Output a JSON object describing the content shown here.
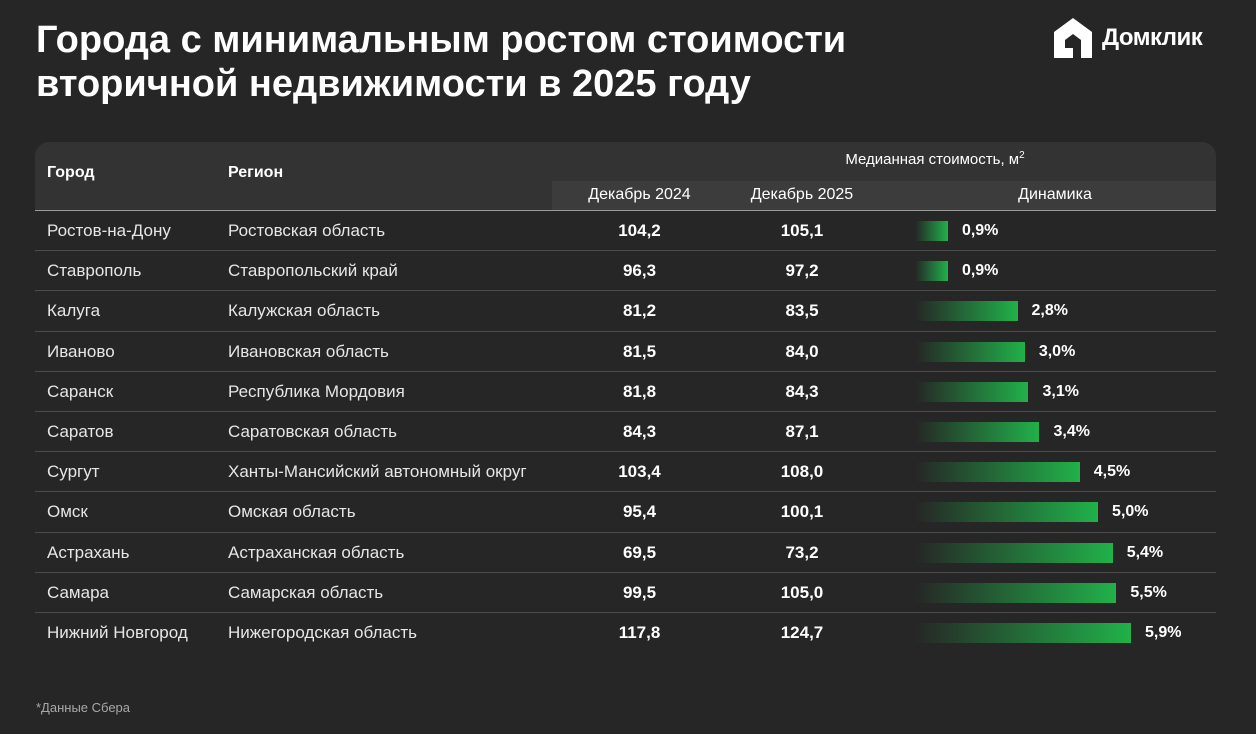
{
  "title": [
    "Города с минимальным ростом стоимости",
    "вторичной недвижимости в 2025 году"
  ],
  "logo": {
    "text": "Домклик"
  },
  "colors": {
    "background": "#262626",
    "header": "#333333",
    "bar": "#21b14a"
  },
  "table": {
    "headers": {
      "city": "Город",
      "region": "Регион",
      "group": "Медианная стоимость, м",
      "group_sup": "2",
      "dec2024": "Декабрь 2024",
      "dec2025": "Декабрь 2025",
      "dynamics": "Динамика"
    }
  },
  "chart_data": {
    "type": "table",
    "columns": [
      "Город",
      "Регион",
      "Декабрь 2024",
      "Декабрь 2025",
      "Динамика"
    ],
    "rows": [
      {
        "city": "Ростов-на-Дону",
        "region": "Ростовская область",
        "dec2024": "104,2",
        "dec2025": "105,1",
        "dynamics": "0,9%",
        "growth": 0.9
      },
      {
        "city": "Ставрополь",
        "region": "Ставропольский край",
        "dec2024": "96,3",
        "dec2025": "97,2",
        "dynamics": "0,9%",
        "growth": 0.9
      },
      {
        "city": "Калуга",
        "region": "Калужская область",
        "dec2024": "81,2",
        "dec2025": "83,5",
        "dynamics": "2,8%",
        "growth": 2.8
      },
      {
        "city": "Иваново",
        "region": "Ивановская область",
        "dec2024": "81,5",
        "dec2025": "84,0",
        "dynamics": "3,0%",
        "growth": 3.0
      },
      {
        "city": "Саранск",
        "region": "Республика Мордовия",
        "dec2024": "81,8",
        "dec2025": "84,3",
        "dynamics": "3,1%",
        "growth": 3.1
      },
      {
        "city": "Саратов",
        "region": "Саратовская область",
        "dec2024": "84,3",
        "dec2025": "87,1",
        "dynamics": "3,4%",
        "growth": 3.4
      },
      {
        "city": "Сургут",
        "region": "Ханты-Мансийский автономный округ",
        "dec2024": "103,4",
        "dec2025": "108,0",
        "dynamics": "4,5%",
        "growth": 4.5
      },
      {
        "city": "Омск",
        "region": "Омская область",
        "dec2024": "95,4",
        "dec2025": "100,1",
        "dynamics": "5,0%",
        "growth": 5.0
      },
      {
        "city": "Астрахань",
        "region": "Астраханская область",
        "dec2024": "69,5",
        "dec2025": "73,2",
        "dynamics": "5,4%",
        "growth": 5.4
      },
      {
        "city": "Самара",
        "region": "Самарская область",
        "dec2024": "99,5",
        "dec2025": "105,0",
        "dynamics": "5,5%",
        "growth": 5.5
      },
      {
        "city": "Нижний Новгород",
        "region": "Нижегородская область",
        "dec2024": "117,8",
        "dec2025": "124,7",
        "dynamics": "5,9%",
        "growth": 5.9
      }
    ]
  },
  "footnote": "*Данные Сбера"
}
